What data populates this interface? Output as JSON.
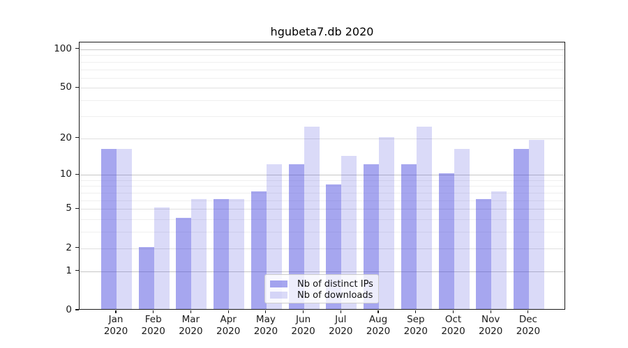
{
  "title": "hgubeta7.db 2020",
  "chart_data": {
    "type": "bar",
    "title": "hgubeta7.db 2020",
    "categories": [
      "Jan",
      "Feb",
      "Mar",
      "Apr",
      "May",
      "Jun",
      "Jul",
      "Aug",
      "Sep",
      "Oct",
      "Nov",
      "Dec"
    ],
    "category_year": "2020",
    "series": [
      {
        "name": "Nb of distinct IPs",
        "color": "rgba(68,68,221,0.48)",
        "values": [
          16,
          2,
          4,
          6,
          7,
          12,
          8,
          12,
          12,
          10,
          6,
          16
        ]
      },
      {
        "name": "Nb of downloads",
        "color": "rgba(68,68,221,0.20)",
        "values": [
          16,
          5,
          6,
          6,
          12,
          24,
          14,
          20,
          24,
          16,
          7,
          19
        ]
      }
    ],
    "xlabel": "",
    "ylabel": "",
    "yscale": "log1p",
    "ylim": [
      0,
      113
    ],
    "yticks": [
      0,
      1,
      2,
      5,
      10,
      20,
      50,
      100
    ],
    "minor_gridlines": [
      3,
      4,
      6,
      7,
      8,
      9,
      30,
      40,
      60,
      70,
      80,
      90
    ],
    "grid": "on",
    "legend_position": "lower center",
    "colors": {
      "bar_base": "#4444dd",
      "axis": "#1a1a1a",
      "grid_power": "#c6c6c6",
      "grid_labeled": "#e0e0e0",
      "grid_minor": "#efefef",
      "legend_border": "#cccccc"
    }
  }
}
